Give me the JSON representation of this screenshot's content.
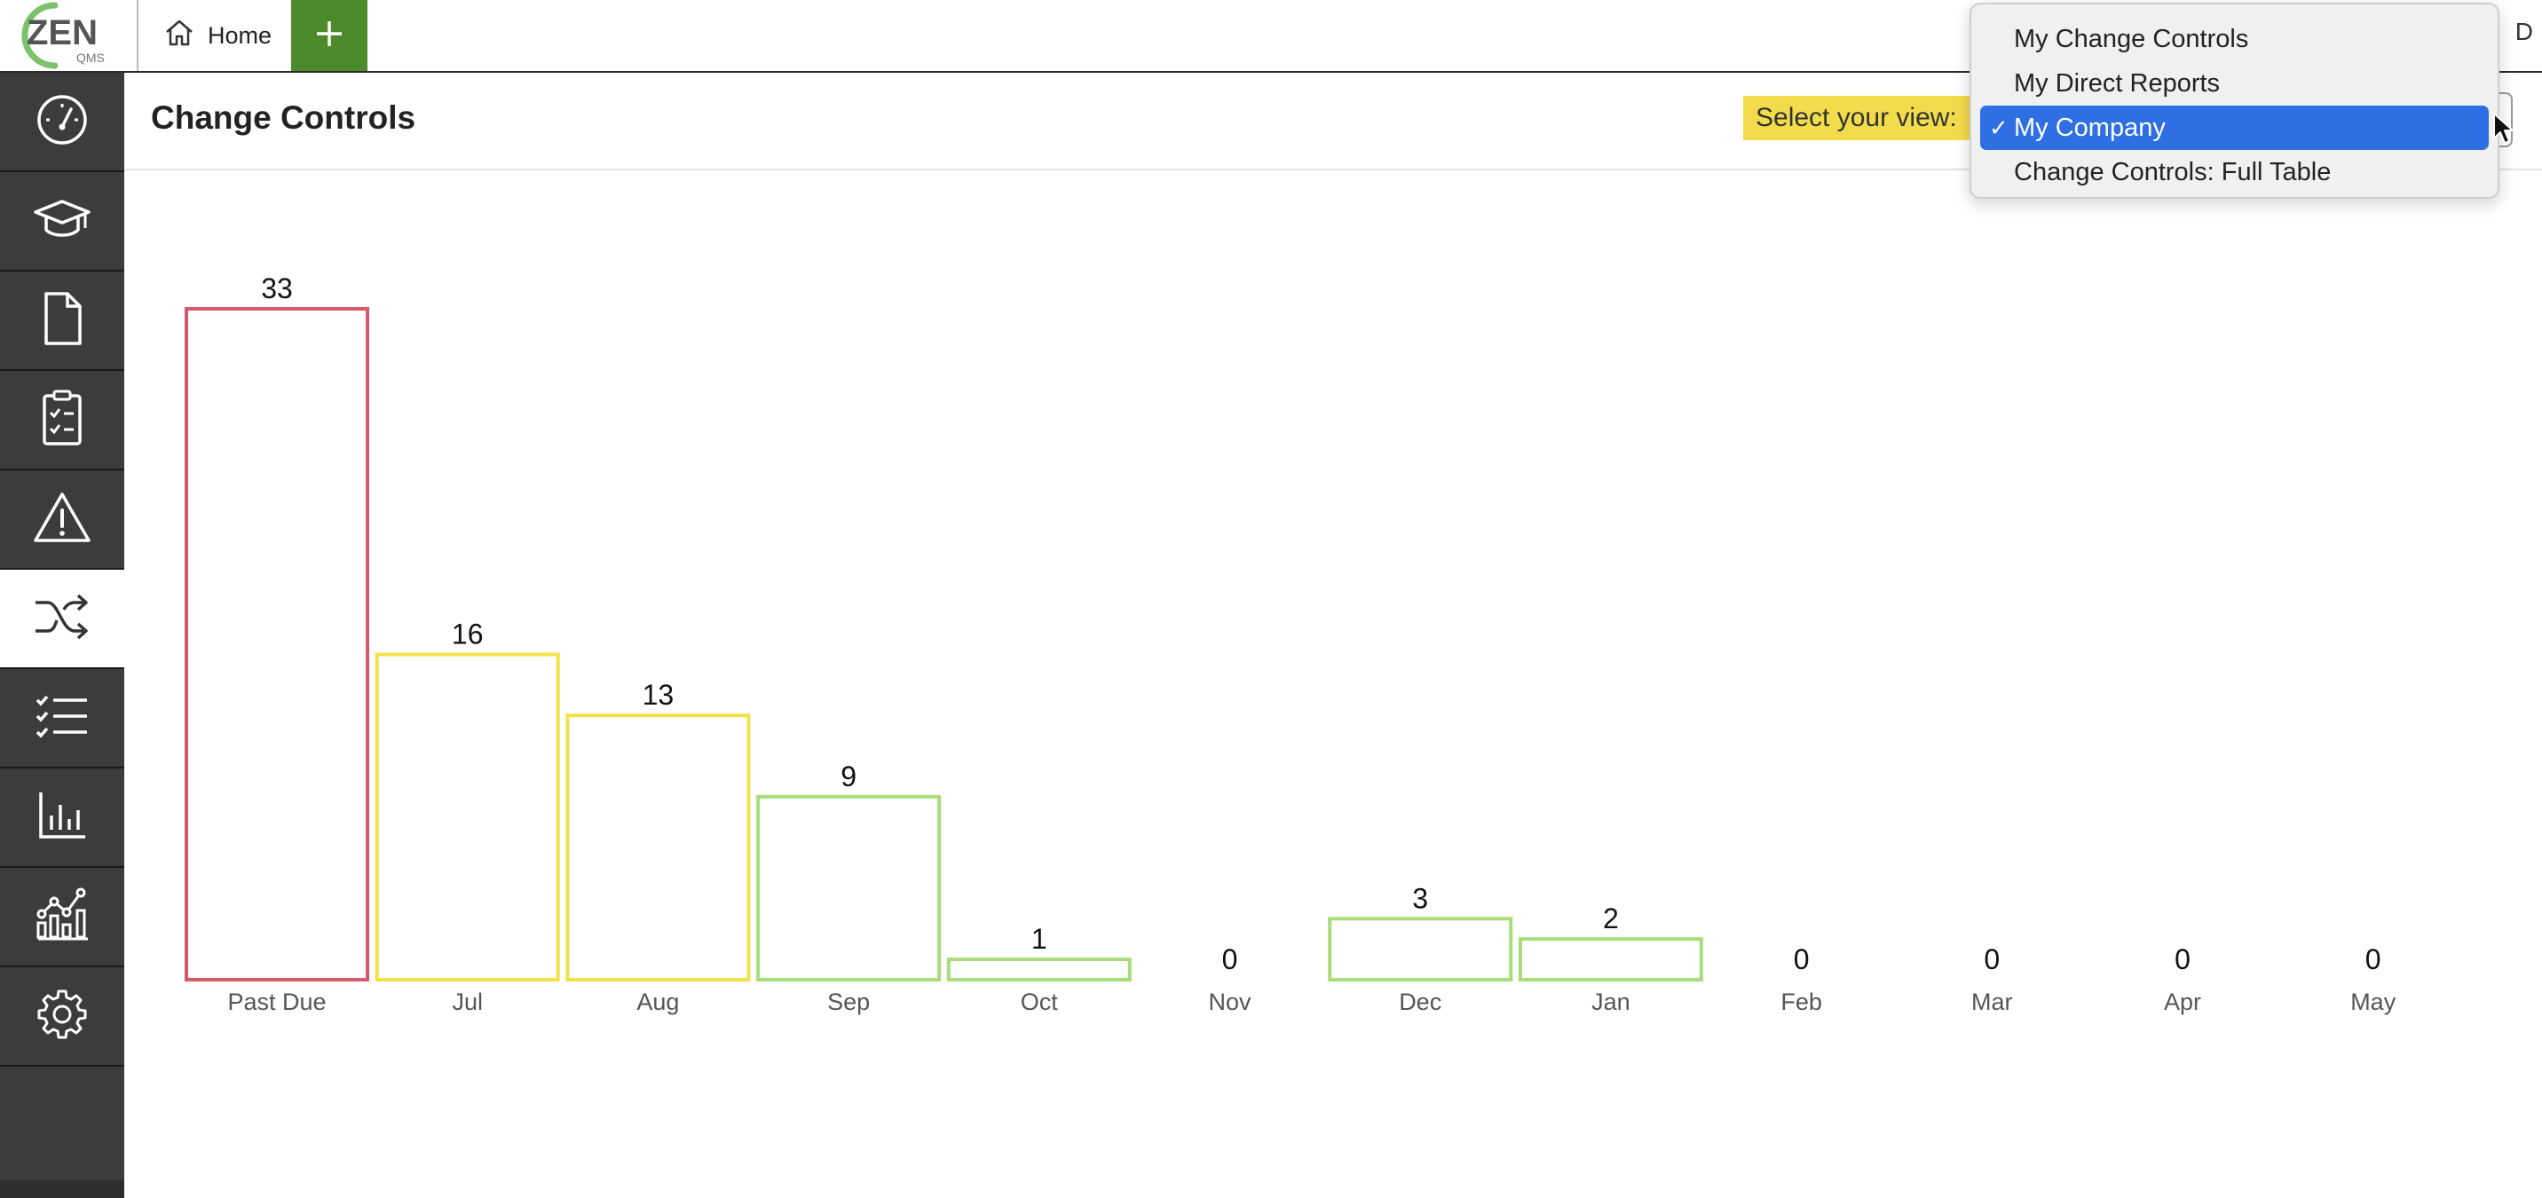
{
  "app": {
    "logo_text": "ZEN",
    "logo_sub": "QMS",
    "home_tab_label": "Home",
    "add_tab_icon": "plus-icon",
    "user_initial": "D"
  },
  "sidebar": {
    "items": [
      {
        "icon": "dashboard-gauge-icon",
        "active": false
      },
      {
        "icon": "training-cap-icon",
        "active": false
      },
      {
        "icon": "document-icon",
        "active": false
      },
      {
        "icon": "clipboard-checklist-icon",
        "active": false
      },
      {
        "icon": "warning-triangle-icon",
        "active": false
      },
      {
        "icon": "shuffle-change-icon",
        "active": true
      },
      {
        "icon": "checklist-icon",
        "active": false
      },
      {
        "icon": "bar-chart-icon",
        "active": false
      },
      {
        "icon": "line-chart-icon",
        "active": false
      },
      {
        "icon": "gear-icon",
        "active": false
      }
    ]
  },
  "page": {
    "title": "Change Controls",
    "view_label": "Select your view:"
  },
  "view_menu": {
    "options": [
      "My Change Controls",
      "My Direct Reports",
      "My Company",
      "Change Controls: Full Table"
    ],
    "selected": "My Company",
    "check_mark": "✓"
  },
  "colors": {
    "overdue": "#d6586b",
    "upcoming": "#f1e24a",
    "later": "#a8dd7a",
    "sidebar_bg": "#3c3c3c",
    "accent_green": "#4c8a2b",
    "highlight_yellow": "#f3dc4c",
    "selection_blue": "#2f6fe4"
  },
  "chart_data": {
    "type": "bar",
    "categories": [
      "Past Due",
      "Jul",
      "Aug",
      "Sep",
      "Oct",
      "Nov",
      "Dec",
      "Jan",
      "Feb",
      "Mar",
      "Apr",
      "May"
    ],
    "values": [
      33,
      16,
      13,
      9,
      1,
      0,
      3,
      2,
      0,
      0,
      0,
      0
    ],
    "bar_colors": [
      "overdue",
      "upcoming",
      "upcoming",
      "later",
      "later",
      "later",
      "later",
      "later",
      "later",
      "later",
      "later",
      "later"
    ],
    "title": "",
    "xlabel": "",
    "ylabel": "",
    "ylim": [
      0,
      33
    ],
    "grid": false,
    "legend": "none",
    "data_labels": true
  }
}
